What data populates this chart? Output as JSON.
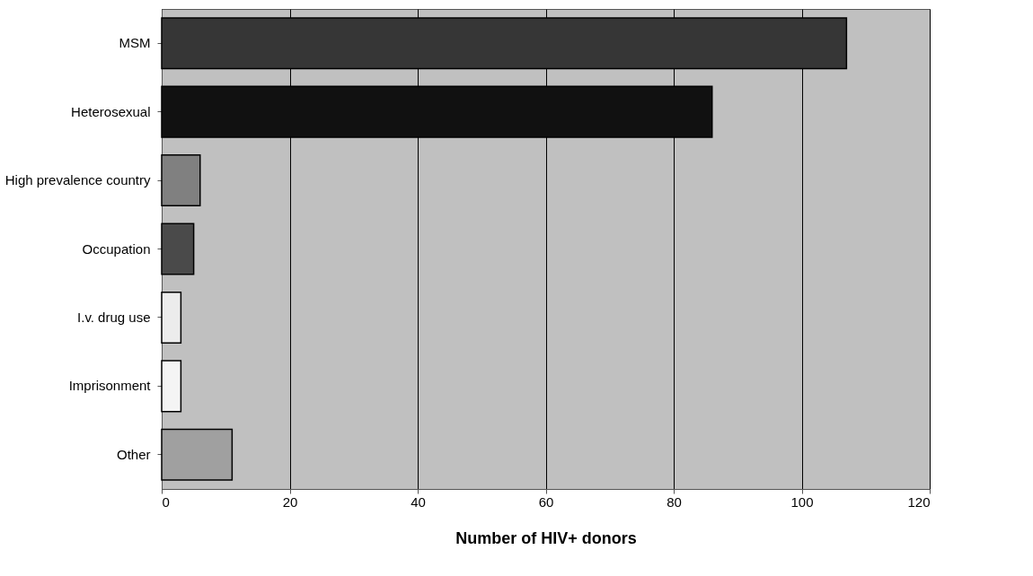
{
  "chart_data": {
    "type": "bar",
    "orientation": "horizontal",
    "xlabel": "Number of HIV+ donors",
    "categories": [
      "MSM",
      "Heterosexual",
      "High prevalence country",
      "Occupation",
      "I.v. drug use",
      "Imprisonment",
      "Other"
    ],
    "values": [
      107,
      86,
      6,
      5,
      3,
      3,
      11
    ],
    "colors": [
      "#363636",
      "#111111",
      "#808080",
      "#4a4a4a",
      "#ececec",
      "#f4f4f4",
      "#a0a0a0"
    ],
    "xlim": [
      0,
      120
    ],
    "xticks": [
      0,
      20,
      40,
      60,
      80,
      100,
      120
    ],
    "grid": "x"
  }
}
